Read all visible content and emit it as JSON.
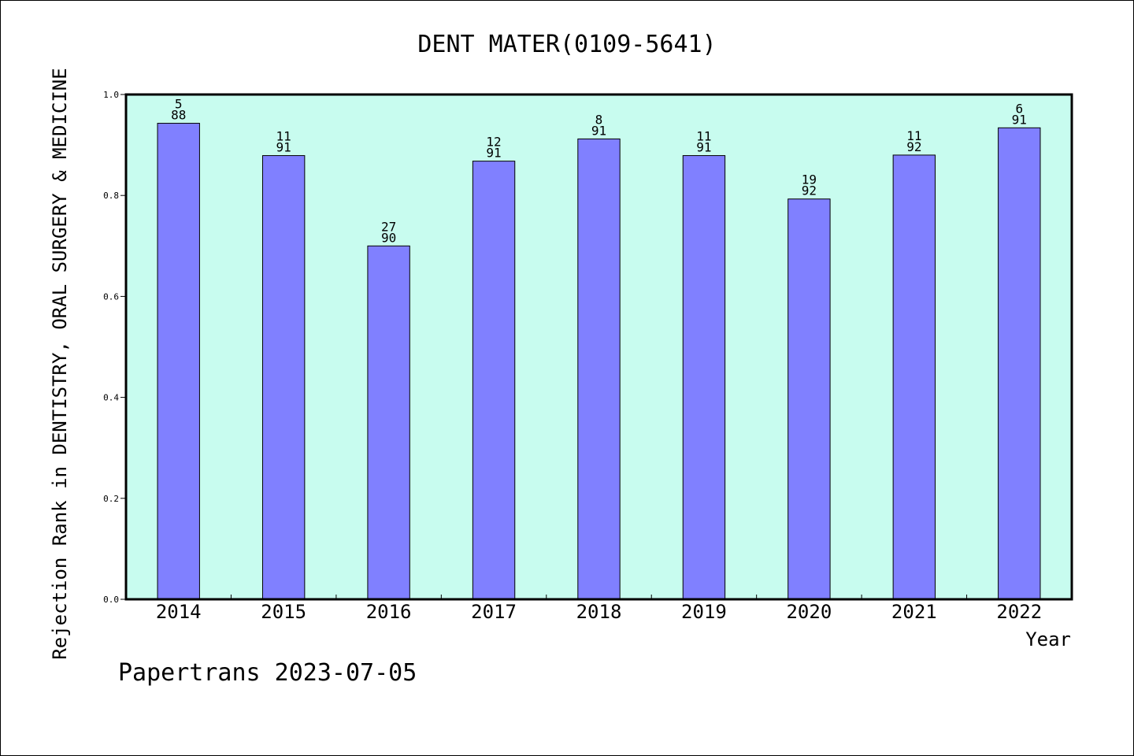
{
  "chart_data": {
    "type": "bar",
    "title": "DENT MATER(0109-5641)",
    "xlabel": "Year",
    "ylabel": "Rejection Rank in DENTISTRY, ORAL SURGERY & MEDICINE",
    "categories": [
      "2014",
      "2015",
      "2016",
      "2017",
      "2018",
      "2019",
      "2020",
      "2021",
      "2022"
    ],
    "values": [
      0.943,
      0.879,
      0.7,
      0.868,
      0.912,
      0.879,
      0.793,
      0.88,
      0.934
    ],
    "bar_labels": [
      [
        "5",
        "88"
      ],
      [
        "11",
        "91"
      ],
      [
        "27",
        "90"
      ],
      [
        "12",
        "91"
      ],
      [
        "8",
        "91"
      ],
      [
        "11",
        "91"
      ],
      [
        "19",
        "92"
      ],
      [
        "11",
        "92"
      ],
      [
        "6",
        "91"
      ]
    ],
    "ylim": [
      0,
      1.0
    ],
    "yticks": [
      "0.0",
      "0.2",
      "0.4",
      "0.6",
      "0.8",
      "1.0"
    ],
    "grid": false,
    "legend": "none",
    "colors": {
      "plot_bg": "#c8fcef",
      "bar": "#8080ff",
      "bar_edge": "#000000"
    }
  },
  "footer": {
    "credit": "Papertrans 2023-07-05"
  }
}
